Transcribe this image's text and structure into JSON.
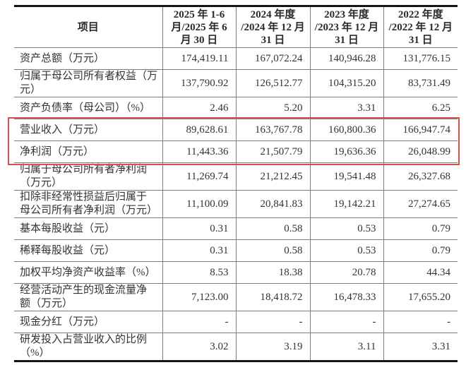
{
  "colors": {
    "text": "#333333",
    "grid_line": "#7b7b7b",
    "frame_line": "#141414",
    "highlight_box": "#df4f47"
  },
  "table": {
    "header": {
      "item_label": "项目",
      "periods": [
        "2025 年 1-6\n月/2025 年 6\n月 30 日",
        "2024 年度\n/2024 年 12 月\n31 日",
        "2023 年度\n/2023 年 12 月\n31 日",
        "2022 年度\n/2022 年 12 月\n31 日"
      ]
    },
    "rows": [
      {
        "label": "资产总额（万元）",
        "values": [
          "174,419.11",
          "167,072.24",
          "140,946.28",
          "131,776.15"
        ],
        "highlighted": false
      },
      {
        "label": "归属于母公司所有者权益（万\n元）",
        "values": [
          "137,790.92",
          "126,512.77",
          "104,315.20",
          "83,731.49"
        ],
        "highlighted": false
      },
      {
        "label": "资产负债率（母公司）（%）",
        "values": [
          "2.46",
          "5.20",
          "3.31",
          "6.25"
        ],
        "highlighted": false
      },
      {
        "label": "营业收入（万元）",
        "values": [
          "89,628.61",
          "163,767.78",
          "160,800.36",
          "166,947.74"
        ],
        "highlighted": true
      },
      {
        "label": "净利润（万元）",
        "values": [
          "11,443.36",
          "21,507.79",
          "19,636.36",
          "26,048.99"
        ],
        "highlighted": true
      },
      {
        "label": "归属于母公司所有者净利润\n（万元）",
        "values": [
          "11,269.74",
          "21,212.45",
          "19,541.48",
          "26,327.68"
        ],
        "highlighted": false
      },
      {
        "label": "扣除非经常性损益后归属于\n母公司所有者净利润（万元）",
        "values": [
          "11,100.09",
          "20,841.83",
          "19,142.21",
          "27,274.65"
        ],
        "highlighted": false
      },
      {
        "label": "基本每股收益（元）",
        "values": [
          "0.31",
          "0.58",
          "0.53",
          "0.79"
        ],
        "highlighted": false
      },
      {
        "label": "稀释每股收益（元）",
        "values": [
          "0.31",
          "0.58",
          "0.53",
          "0.79"
        ],
        "highlighted": false
      },
      {
        "label": "加权平均净资产收益率（%）",
        "values": [
          "8.53",
          "18.38",
          "20.78",
          "44.34"
        ],
        "highlighted": false
      },
      {
        "label": "经营活动产生的现金流量净\n额（万元）",
        "values": [
          "7,123.00",
          "18,418.72",
          "16,478.33",
          "17,655.20"
        ],
        "highlighted": false
      },
      {
        "label": "现金分红（万元）",
        "values": [
          "-",
          "-",
          "-",
          "-"
        ],
        "highlighted": false
      },
      {
        "label": "研发投入占营业收入的比例\n（%）",
        "values": [
          "3.02",
          "3.19",
          "3.11",
          "3.31"
        ],
        "highlighted": false
      }
    ]
  }
}
